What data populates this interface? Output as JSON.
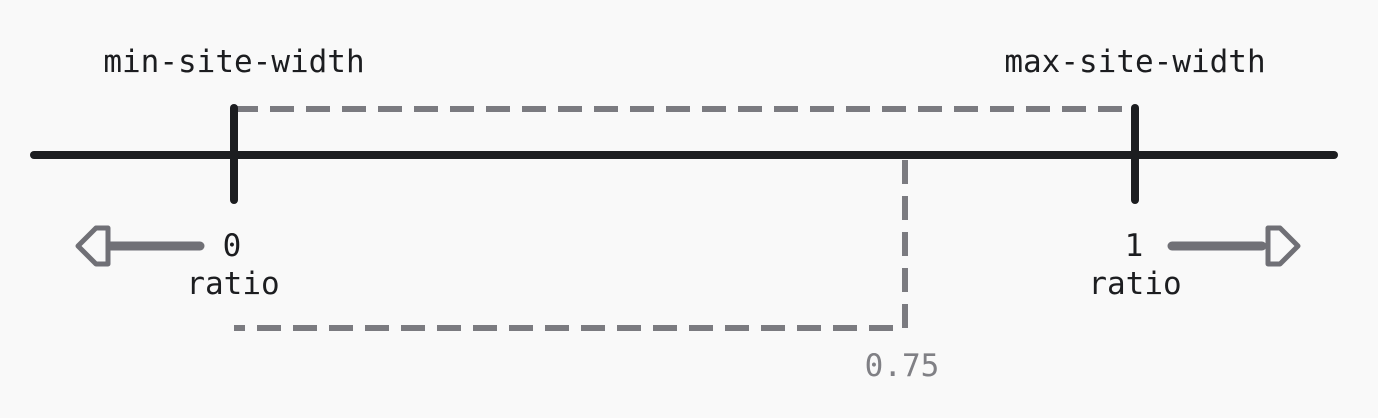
{
  "labels": {
    "min_site_width": "min-site-width",
    "max_site_width": "max-site-width",
    "start_value": "0",
    "end_value": "1",
    "start_unit": "ratio",
    "end_unit": "ratio",
    "marker_value": "0.75"
  },
  "colors": {
    "background": "#f9f9f9",
    "line": "#1c1d20",
    "dashed": "#7b7b80",
    "arrow": "#707076",
    "marker_text": "#808085"
  }
}
